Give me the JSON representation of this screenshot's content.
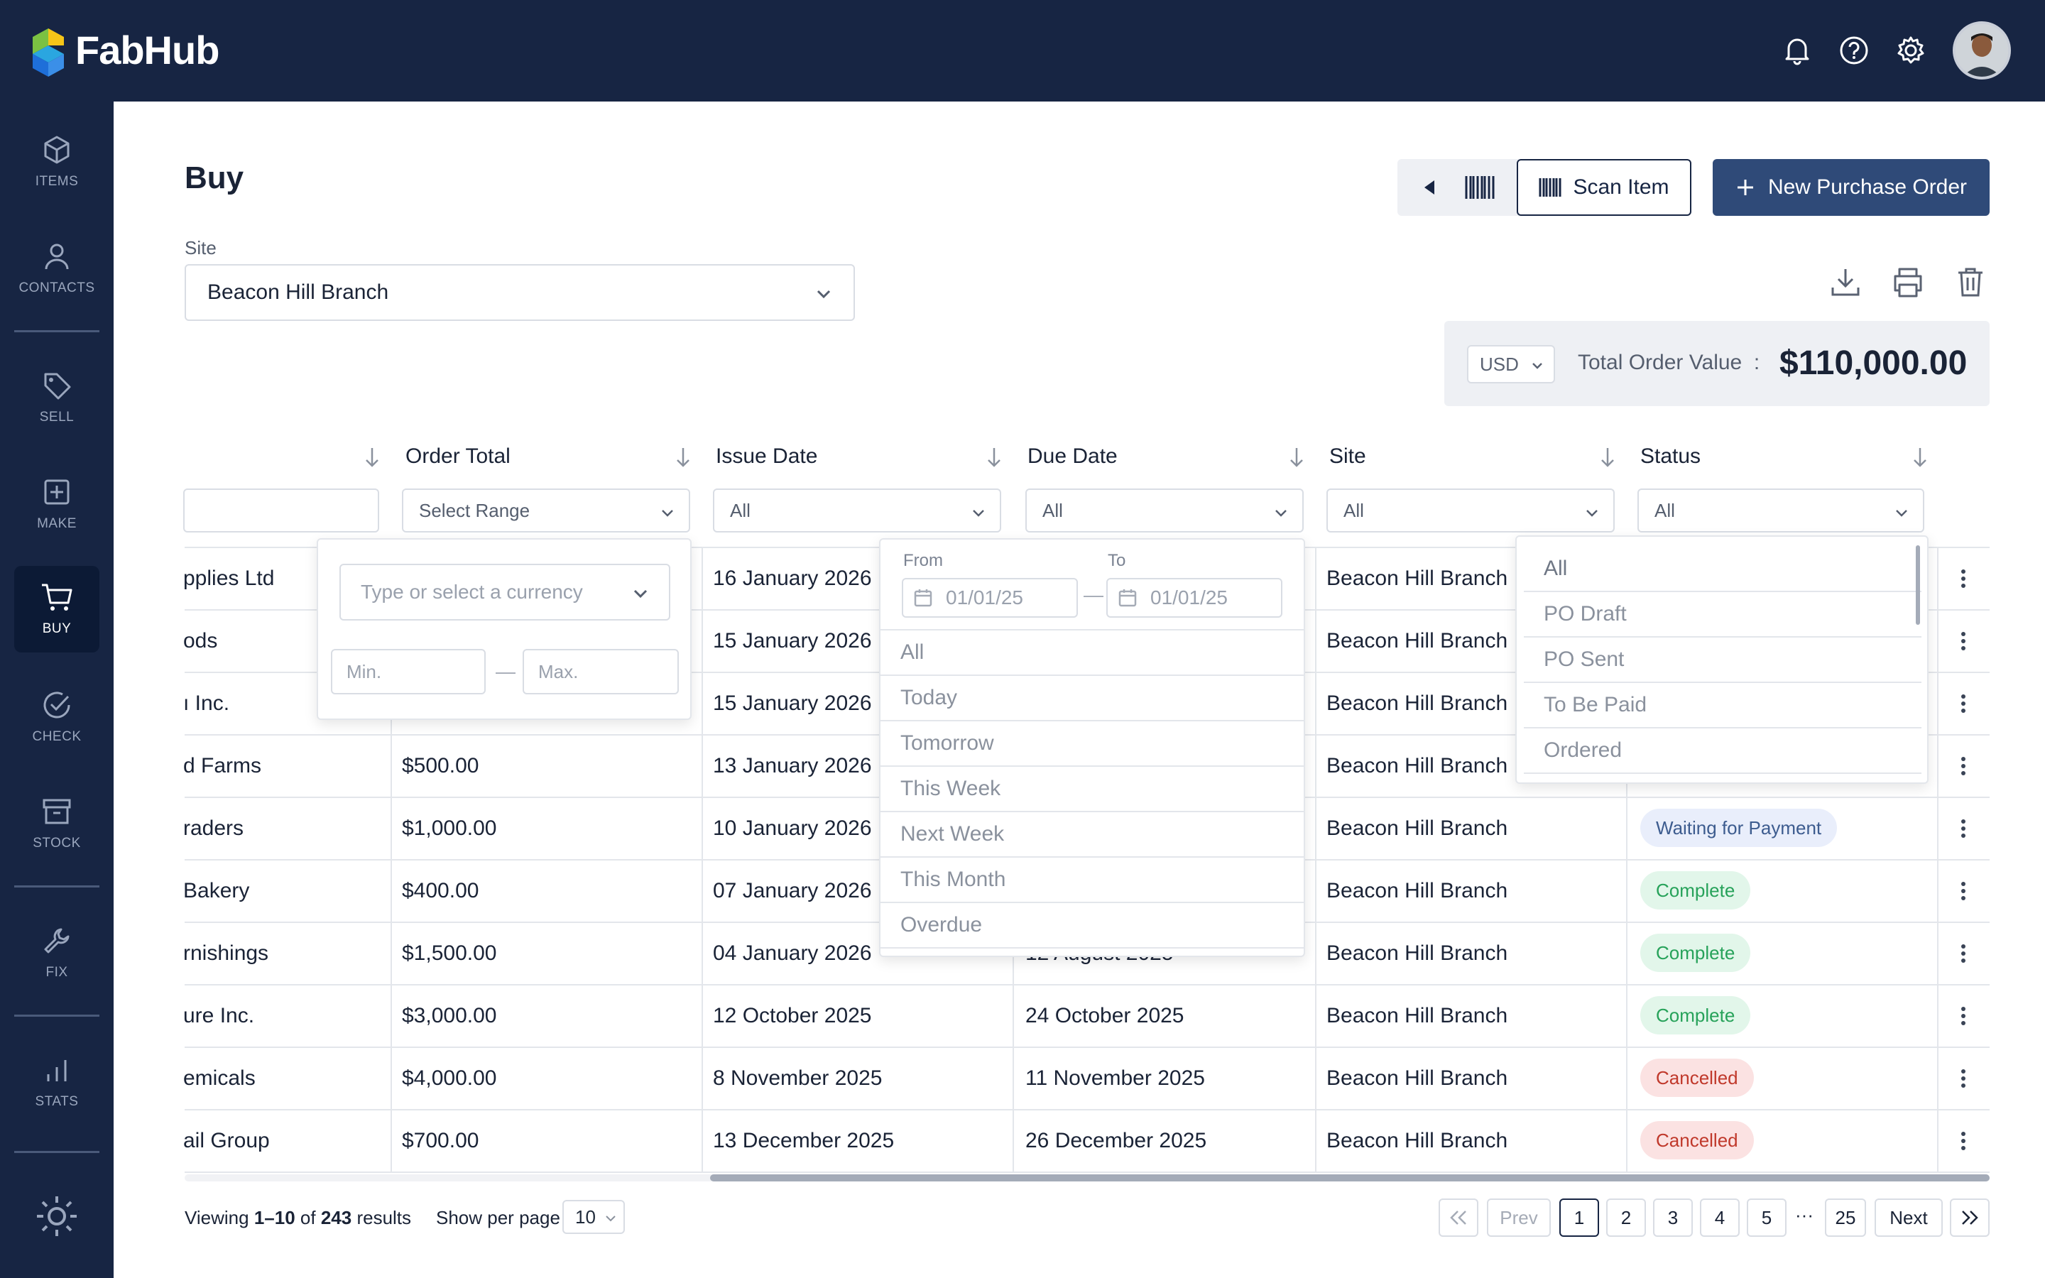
{
  "app": {
    "name": "FabHub"
  },
  "sidebar": {
    "items": [
      {
        "label": "ITEMS",
        "icon": "cube-icon"
      },
      {
        "label": "CONTACTS",
        "icon": "person-icon"
      },
      {
        "label": "SELL",
        "icon": "tag-icon"
      },
      {
        "label": "MAKE",
        "icon": "plus-square-icon"
      },
      {
        "label": "BUY",
        "icon": "cart-icon",
        "active": true
      },
      {
        "label": "CHECK",
        "icon": "check-circle-icon"
      },
      {
        "label": "STOCK",
        "icon": "archive-icon"
      },
      {
        "label": "FIX",
        "icon": "wrench-icon"
      },
      {
        "label": "STATS",
        "icon": "bar-chart-icon"
      }
    ]
  },
  "page": {
    "title": "Buy",
    "site_label": "Site",
    "site_value": "Beacon Hill Branch",
    "scan_label": "Scan Item",
    "new_po_label": "New Purchase Order",
    "currency": "USD",
    "total_label": "Total Order Value",
    "total_sep": ":",
    "total_value": "$110,000.00"
  },
  "table": {
    "headers": [
      "Order Total",
      "Issue Date",
      "Due Date",
      "Site",
      "Status"
    ],
    "filters": {
      "order_total": "Select Range",
      "issue_date": "All",
      "due_date": "All",
      "site": "All",
      "status": "All"
    },
    "rows": [
      {
        "supplier": "pplies Ltd",
        "total": "",
        "issue": "16 January 2026",
        "due": "",
        "site": "Beacon Hill Branch",
        "status": ""
      },
      {
        "supplier": "ods",
        "total": "",
        "issue": "15 January 2026",
        "due": "",
        "site": "Beacon Hill Branch",
        "status": ""
      },
      {
        "supplier": "ı Inc.",
        "total": "",
        "issue": "15 January 2026",
        "due": "",
        "site": "Beacon Hill Branch",
        "status": ""
      },
      {
        "supplier": "d Farms",
        "total": "$500.00",
        "issue": "13 January 2026",
        "due": "",
        "site": "Beacon Hill Branch",
        "status": ""
      },
      {
        "supplier": "raders",
        "total": "$1,000.00",
        "issue": "10 January 2026",
        "due": "",
        "site": "Beacon Hill Branch",
        "status": "Waiting for Payment"
      },
      {
        "supplier": "Bakery",
        "total": "$400.00",
        "issue": "07 January 2026",
        "due": "",
        "site": "Beacon Hill Branch",
        "status": "Complete"
      },
      {
        "supplier": "rnishings",
        "total": "$1,500.00",
        "issue": "04 January 2026",
        "due": "12 August 2025",
        "site": "Beacon Hill Branch",
        "status": "Complete"
      },
      {
        "supplier": "ure Inc.",
        "total": "$3,000.00",
        "issue": "12 October 2025",
        "due": "24 October 2025",
        "site": "Beacon Hill Branch",
        "status": "Complete"
      },
      {
        "supplier": "emicals",
        "total": "$4,000.00",
        "issue": "8 November 2025",
        "due": "11 November 2025",
        "site": "Beacon Hill Branch",
        "status": "Cancelled"
      },
      {
        "supplier": "ail Group",
        "total": "$700.00",
        "issue": "13 December 2025",
        "due": "26 December 2025",
        "site": "Beacon Hill Branch",
        "status": "Cancelled"
      }
    ]
  },
  "range_dropdown": {
    "currency_placeholder": "Type or select a currency",
    "min_placeholder": "Min.",
    "max_placeholder": "Max.",
    "dash": "—"
  },
  "date_dropdown": {
    "from_label": "From",
    "to_label": "To",
    "from_value": "01/01/25",
    "to_value": "01/01/25",
    "dash": "—",
    "options": [
      "All",
      "Today",
      "Tomorrow",
      "This Week",
      "Next Week",
      "This Month",
      "Overdue"
    ]
  },
  "status_dropdown": {
    "options": [
      "All",
      "PO Draft",
      "PO Sent",
      "To Be Paid",
      "Ordered"
    ]
  },
  "footer": {
    "viewing_prefix": "Viewing",
    "viewing_range": "1–10",
    "viewing_of": "of",
    "viewing_total": "243",
    "viewing_suffix": "results",
    "per_page_label": "Show per page",
    "per_page_value": "10",
    "prev": "Prev",
    "next": "Next",
    "pages": [
      "1",
      "2",
      "3",
      "4",
      "5"
    ],
    "ellipsis": "···",
    "last_page": "25"
  }
}
